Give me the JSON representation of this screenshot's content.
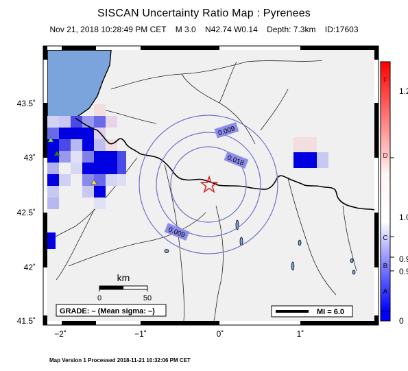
{
  "title": "SISCAN Uncertainty Ratio Map : Pyrenees",
  "subtitle": "Nov 21, 2018 10:28:49 PM CET    M 3.0    N42.74 W0.14    Depth: 7.3km    ID:17603",
  "footer": "Map Version 1 Processed 2018-11-21 10:32:06 PM CET",
  "axes": {
    "lat_labels": [
      "43.5˚",
      "43˚",
      "42.5˚",
      "42˚",
      "41.5˚"
    ],
    "lon_labels": [
      "−2˚",
      "−1˚",
      "0˚",
      "1˚"
    ]
  },
  "contours": {
    "inner_label": "0.018",
    "middle_label": "0.009",
    "outer_label": "0.009"
  },
  "scale_bar": {
    "unit": "km",
    "tick_start": "0",
    "tick_end": "50"
  },
  "grade_box": "GRADE: – (Mean sigma: –)",
  "mi_legend": "MI = 6.0",
  "colorbar": {
    "left_letters": [
      "F",
      "D",
      "C",
      "B",
      "A"
    ],
    "right_values": [
      "1.2",
      "1.0",
      "0.9",
      "0.9",
      "0"
    ]
  },
  "colors": {
    "sea": "#7ba3dc",
    "land": "#f0f0f0",
    "contour": "#7070c8",
    "epicenter": "#d81e1e",
    "deep_blue": "#0000e0",
    "mid_blue": "#4a4ae8",
    "light_blue": "#c8c8f2",
    "pale_pink": "#f2dede",
    "colorbar_top": "#ff0000",
    "colorbar_bottom": "#0000ff"
  }
}
